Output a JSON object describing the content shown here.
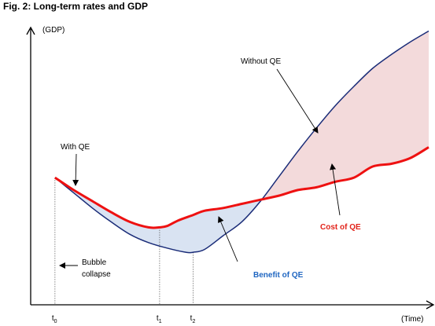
{
  "title": "Fig. 2: Long-term rates and GDP",
  "colors": {
    "with_qe": "#ee1111",
    "without_qe": "#1a2c78",
    "benefit_fill": "#d9e3f2",
    "cost_fill": "#f3dadb",
    "benefit_text": "#1f66c1",
    "cost_text": "#e2231a",
    "axis": "#000000"
  },
  "chart_data": {
    "type": "line",
    "xlabel": "(Time)",
    "ylabel": "(GDP)",
    "x_ticks": [
      {
        "main": "t",
        "sub": "0",
        "x": 0
      },
      {
        "main": "t",
        "sub": "1",
        "x": 0.28
      },
      {
        "main": "t",
        "sub": "2",
        "x": 0.37
      }
    ],
    "xlim": [
      -0.065,
      1.0
    ],
    "ylim": [
      0,
      1.0
    ],
    "series": [
      {
        "name": "With QE",
        "x": [
          0,
          0.05,
          0.1,
          0.15,
          0.2,
          0.25,
          0.28,
          0.3,
          0.33,
          0.37,
          0.4,
          0.45,
          0.5,
          0.55,
          0.6,
          0.65,
          0.7,
          0.75,
          0.8,
          0.85,
          0.9,
          0.95,
          1.0
        ],
        "y": [
          0.46,
          0.415,
          0.375,
          0.335,
          0.3,
          0.28,
          0.28,
          0.285,
          0.305,
          0.325,
          0.34,
          0.35,
          0.365,
          0.38,
          0.395,
          0.415,
          0.425,
          0.445,
          0.46,
          0.5,
          0.51,
          0.53,
          0.57
        ]
      },
      {
        "name": "Without QE",
        "x": [
          0,
          0.05,
          0.1,
          0.15,
          0.2,
          0.25,
          0.3,
          0.35,
          0.37,
          0.4,
          0.45,
          0.5,
          0.55,
          0.6,
          0.65,
          0.7,
          0.75,
          0.8,
          0.85,
          0.9,
          0.95,
          1.0
        ],
        "y": [
          0.46,
          0.405,
          0.35,
          0.3,
          0.255,
          0.225,
          0.205,
          0.19,
          0.19,
          0.2,
          0.25,
          0.3,
          0.375,
          0.465,
          0.555,
          0.64,
          0.72,
          0.79,
          0.855,
          0.905,
          0.95,
          0.99
        ]
      }
    ],
    "annotations": [
      {
        "text": "Without QE",
        "color": "#000000",
        "bold": false
      },
      {
        "text": "With QE",
        "color": "#000000",
        "bold": false
      },
      {
        "text": "Cost of QE",
        "color": "#e2231a",
        "bold": true
      },
      {
        "text": "Benefit of QE",
        "color": "#1f66c1",
        "bold": true
      },
      {
        "text": "Bubble",
        "color": "#000000",
        "bold": false
      },
      {
        "text": "collapse",
        "color": "#000000",
        "bold": false
      }
    ],
    "grid": false,
    "legend": "none"
  }
}
